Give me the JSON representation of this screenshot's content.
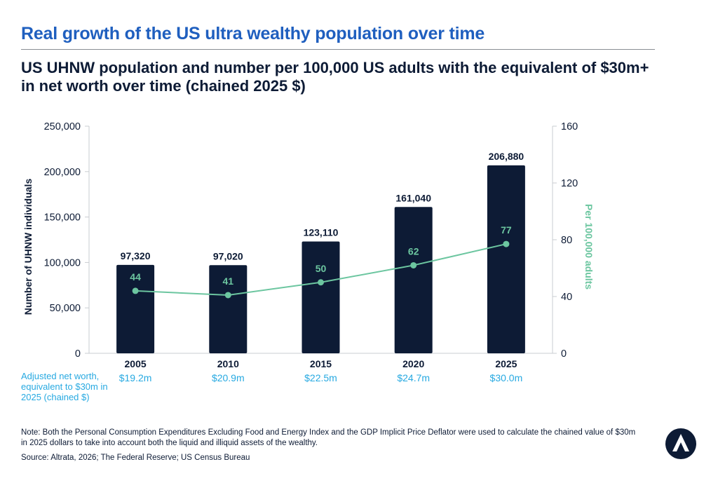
{
  "header": {
    "title": "Real growth of the US ultra wealthy population over time"
  },
  "subtitle": "US UHNW population and number per 100,000 US adults with the equivalent of $30m+ in net worth over time (chained 2025 $)",
  "chart_data": {
    "type": "bar",
    "categories": [
      "2005",
      "2010",
      "2015",
      "2020",
      "2025"
    ],
    "series": [
      {
        "name": "",
        "type": "bar",
        "axis": "left",
        "values": [
          97320,
          97020,
          123110,
          161040,
          206880
        ],
        "labels": [
          "97,320",
          "97,020",
          "123,110",
          "161,040",
          "206,880"
        ],
        "color": "#0d1b35"
      },
      {
        "name": "",
        "type": "line",
        "axis": "right",
        "values": [
          44,
          41,
          50,
          62,
          77
        ],
        "labels": [
          "44",
          "41",
          "50",
          "62",
          "77"
        ],
        "color": "#6cc6a0"
      }
    ],
    "ylabel": "Number of UHNW individuals",
    "ylabel_right": "Per 100,000 adults",
    "ylim": [
      0,
      250000
    ],
    "ylim_right": [
      0,
      160
    ],
    "y_ticks": [
      "0",
      "50,000",
      "100,000",
      "150,000",
      "200,000",
      "250,000"
    ],
    "y_ticks_right": [
      "0",
      "40",
      "80",
      "120",
      "160"
    ],
    "grid": false,
    "secondary_row": {
      "label": "Adjusted net worth, equivalent to $30m in 2025 (chained $)",
      "values": [
        "$19.2m",
        "$20.9m",
        "$22.5m",
        "$24.7m",
        "$30.0m"
      ],
      "color": "#27a9e1"
    }
  },
  "note": "Note: Both the Personal Consumption Expenditures Excluding Food and Energy Index and the GDP Implicit Price Deflator were used to calculate the chained value of $30m in 2025 dollars to take into account both the liquid and illiquid assets of the wealthy.",
  "source": "Source: Altrata, 2026; The Federal Reserve; US Census Bureau",
  "logo": {
    "icon": "altrata-logo-icon",
    "color": "#0d1b35"
  }
}
